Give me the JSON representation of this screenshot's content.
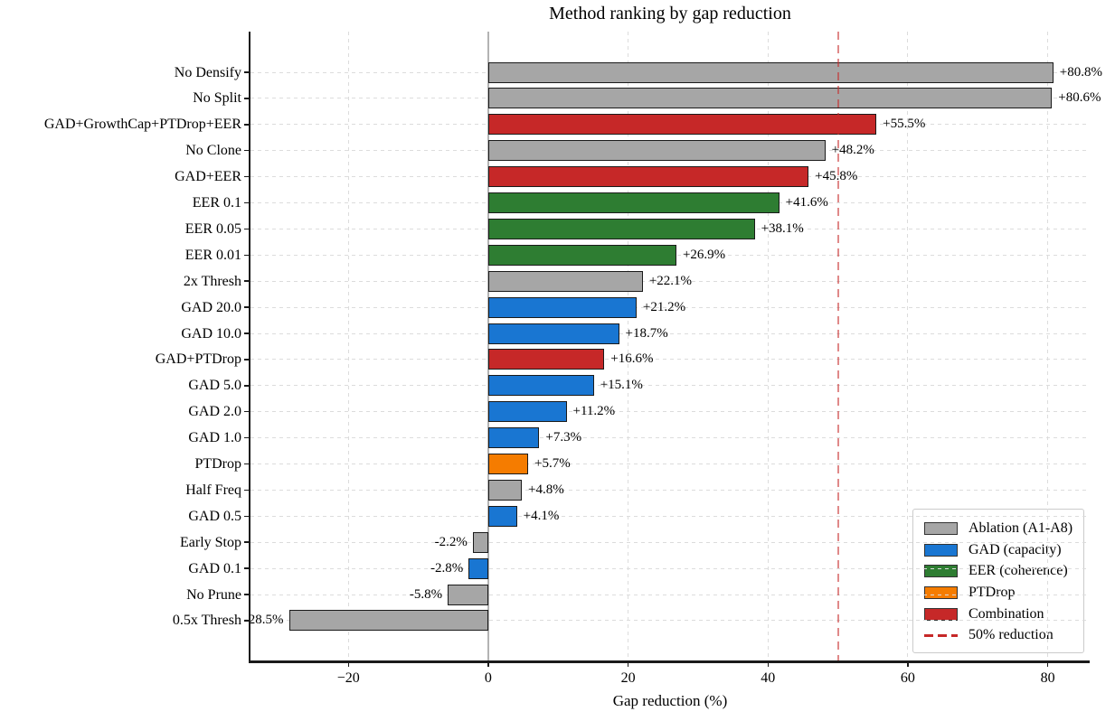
{
  "chart_data": {
    "type": "bar",
    "orientation": "horizontal",
    "title": "Method ranking by gap reduction",
    "xlabel": "Gap reduction (%)",
    "ylabel": "",
    "xlim": [
      -34,
      86
    ],
    "xticks": [
      -20,
      0,
      20,
      40,
      60,
      80
    ],
    "xtick_labels": [
      "−20",
      "0",
      "20",
      "40",
      "60",
      "80"
    ],
    "grid": true,
    "categories": [
      "No Densify",
      "No Split",
      "GAD+GrowthCap+PTDrop+EER",
      "No Clone",
      "GAD+EER",
      "EER 0.1",
      "EER 0.05",
      "EER 0.01",
      "2x Thresh",
      "GAD 20.0",
      "GAD 10.0",
      "GAD+PTDrop",
      "GAD 5.0",
      "GAD 2.0",
      "GAD 1.0",
      "PTDrop",
      "Half Freq",
      "GAD 0.5",
      "Early Stop",
      "GAD 0.1",
      "No Prune",
      "0.5x Thresh"
    ],
    "values": [
      80.8,
      80.6,
      55.5,
      48.2,
      45.8,
      41.6,
      38.1,
      26.9,
      22.1,
      21.2,
      18.7,
      16.6,
      15.1,
      11.2,
      7.3,
      5.7,
      4.8,
      4.1,
      -2.2,
      -2.8,
      -5.8,
      -28.5
    ],
    "value_labels": [
      "+80.8%",
      "+80.6%",
      "+55.5%",
      "+48.2%",
      "+45.8%",
      "+41.6%",
      "+38.1%",
      "+26.9%",
      "+22.1%",
      "+21.2%",
      "+18.7%",
      "+16.6%",
      "+15.1%",
      "+11.2%",
      "+7.3%",
      "+5.7%",
      "+4.8%",
      "+4.1%",
      "-2.2%",
      "-2.8%",
      "-5.8%",
      "-28.5%"
    ],
    "groups": [
      "ablation",
      "ablation",
      "combination",
      "ablation",
      "combination",
      "eer",
      "eer",
      "eer",
      "ablation",
      "gad",
      "gad",
      "combination",
      "gad",
      "gad",
      "gad",
      "ptdrop",
      "ablation",
      "gad",
      "ablation",
      "gad",
      "ablation",
      "ablation"
    ],
    "palette": {
      "ablation": "#a6a6a6",
      "gad": "#1976d2",
      "eer": "#2e7d32",
      "ptdrop": "#f57c00",
      "combination": "#c62828"
    },
    "reference_line": {
      "x": 50,
      "color": "#c62828",
      "style": "dashed",
      "label": "50% reduction"
    },
    "zero_line": {
      "x": 0,
      "color": "#b3b3b3"
    },
    "legend": {
      "position": "lower right",
      "entries": [
        {
          "label": "Ablation (A1-A8)",
          "type": "patch",
          "group": "ablation"
        },
        {
          "label": "GAD (capacity)",
          "type": "patch",
          "group": "gad"
        },
        {
          "label": "EER (coherence)",
          "type": "patch",
          "group": "eer"
        },
        {
          "label": "PTDrop",
          "type": "patch",
          "group": "ptdrop"
        },
        {
          "label": "Combination",
          "type": "patch",
          "group": "combination"
        },
        {
          "label": "50% reduction",
          "type": "dashed-line",
          "color": "#c62828"
        }
      ]
    }
  }
}
